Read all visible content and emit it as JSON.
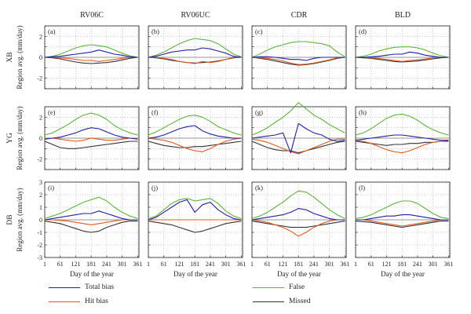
{
  "chart_data": {
    "type": "line",
    "columns": [
      "RV06C",
      "RV06UC",
      "CDR",
      "BLD"
    ],
    "rows": [
      "XB",
      "YG",
      "DB"
    ],
    "ylabel": "Region avg. (mm/day)",
    "xlabel": "Day of the year",
    "x_ticks": [
      "1",
      "61",
      "121",
      "181",
      "241",
      "301",
      "361"
    ],
    "xlim": [
      1,
      366
    ],
    "ylim": [
      -3,
      3
    ],
    "y_ticks_row_top": [
      "-2",
      "0",
      "2"
    ],
    "y_ticks_row_mid": [
      "-2",
      "0",
      "2"
    ],
    "y_ticks_row_bottom": [
      "-3",
      "-2",
      "-1",
      "0",
      "1",
      "2",
      "3"
    ],
    "grid": "dotted",
    "legend_position": "bottom",
    "panel_labels": [
      "(a)",
      "(b)",
      "(c)",
      "(d)",
      "(e)",
      "(f)",
      "(g)",
      "(h)",
      "(i)",
      "(j)",
      "(k)",
      "(l)"
    ],
    "series_names": [
      "Total bias",
      "Hit bias",
      "False",
      "Missed"
    ],
    "colors": {
      "total": "#1f1fa8",
      "hit": "#e0591e",
      "false": "#5cb338",
      "missed": "#333333",
      "zero": "#777777",
      "grid": "#9a9a9a"
    },
    "x_days": [
      1,
      31,
      61,
      91,
      121,
      151,
      181,
      211,
      241,
      271,
      301,
      331,
      361
    ],
    "panels": [
      {
        "label": "(a)",
        "row": "XB",
        "column": "RV06C",
        "false": [
          0.0,
          0.1,
          0.3,
          0.6,
          0.9,
          1.1,
          1.2,
          1.1,
          1.0,
          0.7,
          0.4,
          0.15,
          0.0
        ],
        "total": [
          0.0,
          0.05,
          0.1,
          0.2,
          0.3,
          0.4,
          0.5,
          0.7,
          0.5,
          0.3,
          0.2,
          0.05,
          0.0
        ],
        "hit": [
          0.0,
          0.0,
          -0.05,
          -0.1,
          -0.2,
          -0.3,
          -0.3,
          -0.4,
          -0.3,
          -0.2,
          -0.1,
          0.0,
          0.0
        ],
        "missed": [
          0.0,
          -0.05,
          -0.15,
          -0.3,
          -0.45,
          -0.55,
          -0.6,
          -0.55,
          -0.5,
          -0.4,
          -0.25,
          -0.1,
          0.0
        ]
      },
      {
        "label": "(b)",
        "row": "XB",
        "column": "RV06UC",
        "false": [
          0.0,
          0.2,
          0.5,
          0.9,
          1.3,
          1.6,
          1.8,
          1.7,
          1.6,
          1.3,
          0.8,
          0.3,
          0.05
        ],
        "total": [
          0.0,
          0.1,
          0.3,
          0.5,
          0.6,
          0.7,
          0.7,
          0.9,
          0.8,
          0.6,
          0.4,
          0.1,
          0.0
        ],
        "hit": [
          0.0,
          0.0,
          -0.1,
          -0.2,
          -0.4,
          -0.5,
          -0.6,
          -0.4,
          -0.5,
          -0.4,
          -0.2,
          0.0,
          0.0
        ],
        "missed": [
          0.0,
          -0.05,
          -0.15,
          -0.3,
          -0.4,
          -0.5,
          -0.55,
          -0.5,
          -0.45,
          -0.35,
          -0.2,
          -0.05,
          0.0
        ]
      },
      {
        "label": "(c)",
        "row": "XB",
        "column": "CDR",
        "false": [
          0.0,
          0.3,
          0.7,
          1.0,
          1.2,
          1.4,
          1.5,
          1.5,
          1.4,
          1.3,
          1.1,
          0.5,
          0.05
        ],
        "total": [
          0.0,
          0.05,
          0.05,
          0.0,
          -0.1,
          -0.2,
          -0.2,
          -0.3,
          -0.1,
          0.0,
          0.0,
          0.0,
          0.0
        ],
        "hit": [
          0.0,
          -0.05,
          -0.1,
          -0.2,
          -0.35,
          -0.55,
          -0.7,
          -0.65,
          -0.55,
          -0.4,
          -0.25,
          -0.05,
          0.0
        ],
        "missed": [
          0.0,
          -0.1,
          -0.2,
          -0.35,
          -0.5,
          -0.65,
          -0.75,
          -0.7,
          -0.6,
          -0.45,
          -0.3,
          -0.1,
          0.0
        ]
      },
      {
        "label": "(d)",
        "row": "XB",
        "column": "BLD",
        "false": [
          0.0,
          0.1,
          0.3,
          0.6,
          0.8,
          0.95,
          1.0,
          1.0,
          0.9,
          0.7,
          0.4,
          0.15,
          0.0
        ],
        "total": [
          0.0,
          0.0,
          0.05,
          0.1,
          0.2,
          0.3,
          0.3,
          0.5,
          0.4,
          0.2,
          0.1,
          0.0,
          0.0
        ],
        "hit": [
          0.0,
          0.0,
          -0.05,
          -0.1,
          -0.2,
          -0.3,
          -0.4,
          -0.3,
          -0.25,
          -0.15,
          -0.05,
          0.0,
          0.0
        ],
        "missed": [
          0.0,
          -0.05,
          -0.1,
          -0.2,
          -0.3,
          -0.4,
          -0.45,
          -0.4,
          -0.35,
          -0.25,
          -0.15,
          -0.05,
          0.0
        ]
      },
      {
        "label": "(e)",
        "row": "YG",
        "column": "RV06C",
        "false": [
          0.3,
          0.5,
          0.9,
          1.3,
          1.8,
          2.2,
          2.4,
          2.2,
          1.8,
          1.2,
          0.8,
          0.5,
          0.3
        ],
        "total": [
          -0.1,
          0.0,
          0.1,
          0.3,
          0.5,
          0.8,
          1.0,
          0.9,
          0.6,
          0.3,
          0.1,
          0.0,
          -0.1
        ],
        "hit": [
          0.0,
          0.0,
          -0.1,
          -0.2,
          -0.3,
          -0.2,
          0.0,
          -0.1,
          -0.2,
          -0.2,
          -0.1,
          0.0,
          0.0
        ],
        "missed": [
          -0.3,
          -0.6,
          -0.9,
          -1.0,
          -1.0,
          -0.9,
          -0.8,
          -0.7,
          -0.6,
          -0.5,
          -0.4,
          -0.3,
          -0.3
        ]
      },
      {
        "label": "(f)",
        "row": "YG",
        "column": "RV06UC",
        "false": [
          0.3,
          0.6,
          1.0,
          1.4,
          1.8,
          2.1,
          2.2,
          2.0,
          1.6,
          1.1,
          0.8,
          0.5,
          0.3
        ],
        "total": [
          0.0,
          0.1,
          0.3,
          0.6,
          0.9,
          1.1,
          1.2,
          0.7,
          0.4,
          0.2,
          0.1,
          0.0,
          0.0
        ],
        "hit": [
          0.0,
          -0.1,
          -0.2,
          -0.4,
          -0.7,
          -1.0,
          -1.2,
          -1.3,
          -1.0,
          -0.6,
          -0.3,
          -0.1,
          0.0
        ],
        "missed": [
          -0.3,
          -0.5,
          -0.7,
          -0.8,
          -0.9,
          -0.9,
          -0.8,
          -0.8,
          -0.7,
          -0.6,
          -0.5,
          -0.4,
          -0.3
        ]
      },
      {
        "label": "(g)",
        "row": "YG",
        "column": "CDR",
        "false": [
          0.3,
          0.6,
          1.0,
          1.5,
          2.0,
          2.6,
          3.4,
          2.8,
          2.2,
          1.8,
          1.3,
          0.9,
          0.5
        ],
        "total": [
          0.0,
          0.1,
          0.2,
          0.3,
          0.5,
          -1.4,
          1.4,
          0.9,
          0.5,
          0.3,
          -0.1,
          -0.3,
          -0.2
        ],
        "hit": [
          -0.1,
          -0.2,
          -0.4,
          -0.7,
          -1.0,
          -1.3,
          -1.5,
          -1.2,
          -0.9,
          -0.6,
          -0.3,
          -0.1,
          -0.1
        ],
        "missed": [
          -0.3,
          -0.6,
          -0.9,
          -1.1,
          -1.2,
          -1.2,
          -1.4,
          -1.2,
          -1.0,
          -0.8,
          -0.6,
          -0.4,
          -0.3
        ]
      },
      {
        "label": "(h)",
        "row": "YG",
        "column": "BLD",
        "false": [
          0.3,
          0.5,
          0.9,
          1.4,
          1.9,
          2.2,
          2.3,
          2.1,
          1.7,
          1.2,
          0.8,
          0.5,
          0.3
        ],
        "total": [
          -0.2,
          -0.1,
          0.0,
          0.1,
          0.2,
          0.3,
          0.3,
          0.2,
          0.1,
          0.0,
          -0.1,
          -0.2,
          -0.2
        ],
        "hit": [
          -0.2,
          -0.3,
          -0.5,
          -0.8,
          -1.1,
          -1.3,
          -1.4,
          -1.2,
          -0.9,
          -0.6,
          -0.4,
          -0.3,
          -0.2
        ],
        "missed": [
          -0.3,
          -0.4,
          -0.5,
          -0.6,
          -0.7,
          -0.6,
          -0.6,
          -0.5,
          -0.5,
          -0.4,
          -0.4,
          -0.3,
          -0.3
        ]
      },
      {
        "label": "(i)",
        "row": "DB",
        "column": "RV06C",
        "false": [
          0.1,
          0.3,
          0.5,
          0.8,
          1.1,
          1.4,
          1.6,
          1.8,
          1.5,
          1.0,
          0.6,
          0.3,
          0.1
        ],
        "total": [
          0.0,
          0.1,
          0.2,
          0.3,
          0.4,
          0.5,
          0.5,
          0.7,
          0.5,
          0.3,
          0.1,
          0.0,
          0.0
        ],
        "hit": [
          0.0,
          0.0,
          -0.05,
          -0.1,
          -0.2,
          -0.3,
          -0.4,
          -0.3,
          -0.2,
          -0.1,
          0.0,
          0.0,
          0.0
        ],
        "missed": [
          -0.1,
          -0.2,
          -0.3,
          -0.5,
          -0.7,
          -0.9,
          -1.0,
          -0.9,
          -0.6,
          -0.4,
          -0.2,
          -0.1,
          -0.1
        ]
      },
      {
        "label": "(j)",
        "row": "DB",
        "column": "RV06UC",
        "false": [
          0.1,
          0.3,
          0.8,
          1.3,
          1.6,
          1.7,
          1.5,
          1.6,
          1.7,
          1.3,
          0.7,
          0.3,
          0.1
        ],
        "total": [
          0.0,
          0.2,
          0.6,
          1.0,
          1.4,
          1.6,
          0.6,
          1.2,
          1.4,
          0.8,
          0.4,
          0.1,
          0.0
        ],
        "hit": [
          0.0,
          0.0,
          0.0,
          0.0,
          0.0,
          0.0,
          0.0,
          0.0,
          0.0,
          0.0,
          0.0,
          0.0,
          0.0
        ],
        "missed": [
          -0.1,
          -0.2,
          -0.3,
          -0.4,
          -0.6,
          -0.8,
          -1.0,
          -0.9,
          -0.7,
          -0.5,
          -0.3,
          -0.2,
          -0.1
        ]
      },
      {
        "label": "(k)",
        "row": "DB",
        "column": "CDR",
        "false": [
          0.1,
          0.3,
          0.6,
          1.0,
          1.4,
          1.9,
          2.3,
          2.2,
          1.8,
          1.3,
          0.8,
          0.4,
          0.1
        ],
        "total": [
          0.0,
          0.1,
          0.2,
          0.3,
          0.4,
          0.6,
          0.9,
          0.8,
          0.5,
          0.3,
          0.1,
          0.0,
          0.0
        ],
        "hit": [
          0.0,
          -0.1,
          -0.2,
          -0.4,
          -0.6,
          -0.9,
          -1.3,
          -1.0,
          -0.6,
          -0.3,
          -0.1,
          0.0,
          0.0
        ],
        "missed": [
          -0.1,
          -0.2,
          -0.3,
          -0.4,
          -0.5,
          -0.6,
          -0.6,
          -0.6,
          -0.5,
          -0.4,
          -0.3,
          -0.2,
          -0.1
        ]
      },
      {
        "label": "(l)",
        "row": "DB",
        "column": "BLD",
        "false": [
          0.1,
          0.2,
          0.4,
          0.7,
          1.0,
          1.3,
          1.5,
          1.5,
          1.3,
          0.9,
          0.5,
          0.2,
          0.1
        ],
        "total": [
          0.0,
          0.0,
          0.1,
          0.2,
          0.3,
          0.3,
          0.4,
          0.4,
          0.3,
          0.2,
          0.1,
          0.0,
          0.0
        ],
        "hit": [
          0.0,
          0.0,
          -0.1,
          -0.2,
          -0.3,
          -0.4,
          -0.5,
          -0.4,
          -0.3,
          -0.2,
          -0.1,
          0.0,
          0.0
        ],
        "missed": [
          -0.1,
          -0.15,
          -0.2,
          -0.3,
          -0.4,
          -0.5,
          -0.6,
          -0.5,
          -0.4,
          -0.3,
          -0.2,
          -0.1,
          -0.1
        ]
      }
    ]
  },
  "legend": {
    "total_bias": "Total bias",
    "hit_bias": "Hit bias",
    "false": "False",
    "missed": "Missed"
  }
}
